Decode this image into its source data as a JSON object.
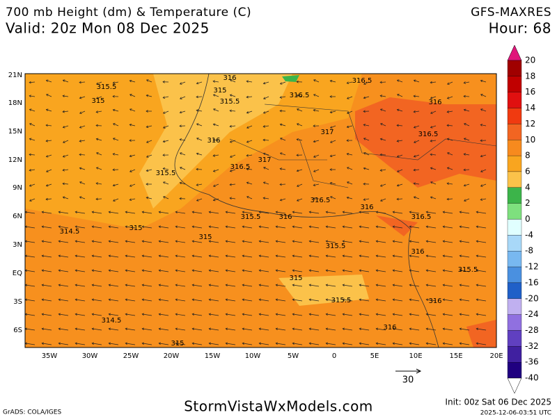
{
  "header": {
    "title": "700 mb Height (dm) & Temperature (C)",
    "valid": "Valid: 20z Mon 08 Dec 2025",
    "model": "GFS-MAXRES",
    "hour": "Hour: 68"
  },
  "map": {
    "lat_labels": [
      "21N",
      "18N",
      "15N",
      "12N",
      "9N",
      "6N",
      "3N",
      "EQ",
      "3S",
      "6S"
    ],
    "lon_labels": [
      "35W",
      "30W",
      "25W",
      "20W",
      "15W",
      "10W",
      "5W",
      "0",
      "5E",
      "10E",
      "15E",
      "20E"
    ],
    "contour_labels": [
      "316",
      "316.5",
      "315.5",
      "315",
      "316.5",
      "315",
      "315.5",
      "316",
      "317",
      "316.5",
      "316",
      "316.5",
      "317",
      "315.5",
      "316.5",
      "316",
      "315.5",
      "316",
      "316.5",
      "314.5",
      "315",
      "315",
      "315.5",
      "316",
      "315.5",
      "315",
      "315.5",
      "316",
      "314.5",
      "316",
      "315"
    ],
    "vector_reference": "30"
  },
  "colorbar": {
    "labels": [
      "20",
      "18",
      "16",
      "14",
      "12",
      "10",
      "8",
      "6",
      "4",
      "2",
      "0",
      "-4",
      "-8",
      "-12",
      "-16",
      "-20",
      "-24",
      "-28",
      "-32",
      "-36",
      "-40"
    ],
    "colors": [
      "#a00000",
      "#c00000",
      "#e01010",
      "#f03a10",
      "#f26522",
      "#f78a1e",
      "#f9a51f",
      "#fbc24a",
      "#3cb44a",
      "#7ee07e",
      "#e0ffff",
      "#a8d8f8",
      "#78b8f0",
      "#4a90e0",
      "#2060c8",
      "#c0b0f0",
      "#9070e0",
      "#6040c0",
      "#4020a0",
      "#200080"
    ],
    "top_color": "#e0157a",
    "bottom_color": "#ffffff"
  },
  "footer": {
    "grads": "GrADS: COLA/IGES",
    "site": "StormVistaWxModels.com",
    "init": "Init: 00z Sat 06 Dec 2025",
    "timestamp": "2025-12-06-03:51 UTC"
  }
}
